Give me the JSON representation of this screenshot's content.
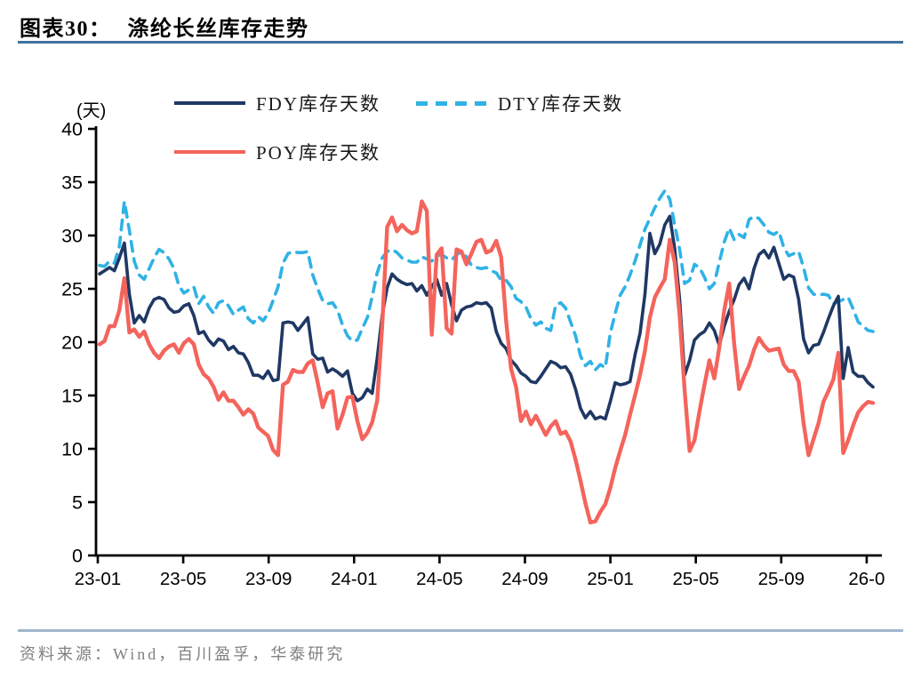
{
  "page": {
    "title_label": "图表30：",
    "title_text": "涤纶长丝库存走势",
    "source_text": "资料来源：Wind，百川盈孚，华泰研究"
  },
  "colors": {
    "fdy_navy": "#1f3864",
    "dty_cyan": "#2fb2e5",
    "poy_red": "#f4645c",
    "title_rule_blue": "#41719c",
    "footer_rule_blue": "#9fb6cc",
    "axis_black": "#000000",
    "source_gray": "#808080"
  },
  "chart_data": {
    "type": "line",
    "unit_label": "(天)",
    "ylabel": "",
    "xlabel": "",
    "ylim": [
      0,
      40
    ],
    "y_ticks": [
      40,
      35,
      30,
      25,
      20,
      15,
      10,
      5,
      0
    ],
    "x_tick_labels": [
      "23-01",
      "23-05",
      "23-09",
      "24-01",
      "24-05",
      "24-09",
      "25-01",
      "25-05",
      "25-09",
      "26-0"
    ],
    "legend": [
      "FDY库存天数",
      "DTY库存天数",
      "POY库存天数"
    ],
    "grid": false,
    "x_is_weekly": true,
    "series": [
      {
        "name": "FDY库存天数",
        "color": "#1f3864",
        "style": "solid",
        "width": 3.6,
        "values": [
          26.4,
          26.7,
          27,
          26.7,
          27.9,
          29.3,
          24.5,
          21.8,
          22.5,
          21.9,
          23.2,
          24,
          24.2,
          24,
          23.2,
          22.8,
          22.9,
          23.4,
          23.6,
          22.5,
          20.8,
          21,
          20.2,
          19.7,
          20.3,
          20.1,
          19.3,
          19.6,
          19,
          18.9,
          18.1,
          16.9,
          16.9,
          16.6,
          17.3,
          16.4,
          16.5,
          21.8,
          21.9,
          21.8,
          21.1,
          21.7,
          22.3,
          18.9,
          18.4,
          18.5,
          17.2,
          17.5,
          17.2,
          16.8,
          17.3,
          15.2,
          14.5,
          14.8,
          15.6,
          15.2,
          18.5,
          22.5,
          25.1,
          26.4,
          25.9,
          25.6,
          25.4,
          25.5,
          24.8,
          25.3,
          24.4,
          25.2,
          25.9,
          24.4,
          25.5,
          23.5,
          22,
          23,
          23.3,
          23.4,
          23.7,
          23.6,
          23.7,
          23.2,
          21,
          19.9,
          19.4,
          18.3,
          17.8,
          17.1,
          16.8,
          16.3,
          16.2,
          16.8,
          17.5,
          18.2,
          18,
          17.6,
          17.7,
          17,
          15.6,
          13.8,
          12.9,
          13.5,
          12.8,
          13,
          12.8,
          14.4,
          16.2,
          16,
          16.1,
          16.3,
          18.8,
          20.8,
          24.5,
          30.2,
          28.3,
          29.2,
          31,
          31.8,
          28.8,
          24,
          16.9,
          18.3,
          20.2,
          20.7,
          21,
          21.8,
          21.1,
          19.7,
          21.5,
          22.9,
          24,
          25.4,
          26,
          25,
          26.9,
          28.2,
          28.6,
          27.9,
          28.9,
          27.4,
          25.9,
          26.3,
          26.1,
          24,
          20.3,
          19,
          19.7,
          19.8,
          20.9,
          22.2,
          23.4,
          24.3,
          16.6,
          19.5,
          17.2,
          16.8,
          16.8,
          16.2,
          15.8
        ]
      },
      {
        "name": "DTY库存天数",
        "color": "#2fb2e5",
        "style": "dashed",
        "width": 3.6,
        "values": [
          27.2,
          27.1,
          27.6,
          27.4,
          29,
          33.2,
          30.5,
          27.6,
          26.3,
          25.9,
          26.9,
          27.9,
          28.7,
          28.4,
          27.8,
          26.9,
          25.3,
          24.6,
          24.9,
          25.2,
          23.6,
          24.3,
          23.3,
          22.7,
          23.7,
          23.9,
          23.4,
          22.6,
          23,
          23.3,
          22.2,
          21.8,
          22.4,
          22,
          22.7,
          23.9,
          25.2,
          27.4,
          28.3,
          28.5,
          28.4,
          28.4,
          28.5,
          26.3,
          25,
          23.9,
          23.6,
          23.7,
          23,
          21.6,
          20.6,
          20.1,
          20.2,
          21.3,
          22.3,
          24.3,
          26.5,
          27.9,
          28.5,
          28.7,
          28.4,
          27.9,
          27.7,
          27.5,
          27.5,
          28,
          27.8,
          27.6,
          28.1,
          28.2,
          27.9,
          27.7,
          28.2,
          28.5,
          28,
          27.2,
          27,
          26.9,
          27,
          26.7,
          26.5,
          25.8,
          25.8,
          25.2,
          24.1,
          23.8,
          23.3,
          22.2,
          21.6,
          21.9,
          21.3,
          21.1,
          23.5,
          23.7,
          23.2,
          21.9,
          20.6,
          18.7,
          17.8,
          18.2,
          17.4,
          17.9,
          17.6,
          20.8,
          22.7,
          24.4,
          25.2,
          26.3,
          27.6,
          29.1,
          30.6,
          31.6,
          32.6,
          33.5,
          34.2,
          33.4,
          31,
          28.7,
          25.5,
          25.8,
          27.3,
          27,
          26.1,
          25,
          25.5,
          27.5,
          29.4,
          30.7,
          29.6,
          30.1,
          29.8,
          31.5,
          31.8,
          31.6,
          31,
          30.3,
          30.1,
          30.4,
          28.9,
          28.1,
          28.3,
          28.5,
          27,
          25.1,
          24.5,
          24.4,
          24.5,
          24.4,
          23.6,
          23.8,
          24,
          24.2,
          23.1,
          21.9,
          21.5,
          21.1,
          21
        ]
      },
      {
        "name": "POY库存天数",
        "color": "#f4645c",
        "style": "solid",
        "width": 4.4,
        "values": [
          19.8,
          20.1,
          21.5,
          21.5,
          23,
          26,
          20.9,
          21.2,
          20.5,
          21,
          19.8,
          19,
          18.5,
          19.2,
          19.6,
          19.8,
          19,
          19.9,
          20.3,
          19.8,
          17.9,
          17,
          16.6,
          15.8,
          14.6,
          15.3,
          14.5,
          14.5,
          13.9,
          13.2,
          13.7,
          13.3,
          12,
          11.6,
          11.2,
          9.9,
          9.4,
          16,
          16.3,
          17.4,
          17.2,
          17.2,
          18,
          18.3,
          16.2,
          13.9,
          15.2,
          15.4,
          11.9,
          13.2,
          14.8,
          14.9,
          12.6,
          10.9,
          11.5,
          12.5,
          14.5,
          21.5,
          30.8,
          31.7,
          30.4,
          31,
          30.5,
          30.2,
          30.4,
          33.2,
          32.3,
          20.7,
          28.2,
          28.8,
          21.3,
          20.8,
          28.7,
          28.5,
          27.3,
          28.3,
          29.4,
          29.6,
          28.4,
          28.6,
          29.5,
          28,
          22,
          17.5,
          15.8,
          12.6,
          13.5,
          12.3,
          13.1,
          12.2,
          11.3,
          12.1,
          12.6,
          11.4,
          11.6,
          10.7,
          9,
          7,
          4.9,
          3.1,
          3.2,
          4.1,
          4.8,
          6.3,
          8.2,
          9.8,
          11.3,
          13.2,
          15,
          16.9,
          19.2,
          22.3,
          24.2,
          25.1,
          25.9,
          29.6,
          27.5,
          22.5,
          15.5,
          9.8,
          10.8,
          13.5,
          16,
          18.3,
          16.6,
          19.5,
          23,
          25.5,
          19.8,
          15.6,
          16.8,
          17.8,
          19.3,
          20.4,
          19.7,
          19.2,
          19.3,
          19.4,
          17.9,
          17.3,
          17.3,
          16.3,
          12.4,
          9.4,
          10.9,
          12.4,
          14.4,
          15.4,
          16.5,
          19,
          9.6,
          10.8,
          12.2,
          13.4,
          14,
          14.4,
          14.3
        ]
      }
    ]
  }
}
